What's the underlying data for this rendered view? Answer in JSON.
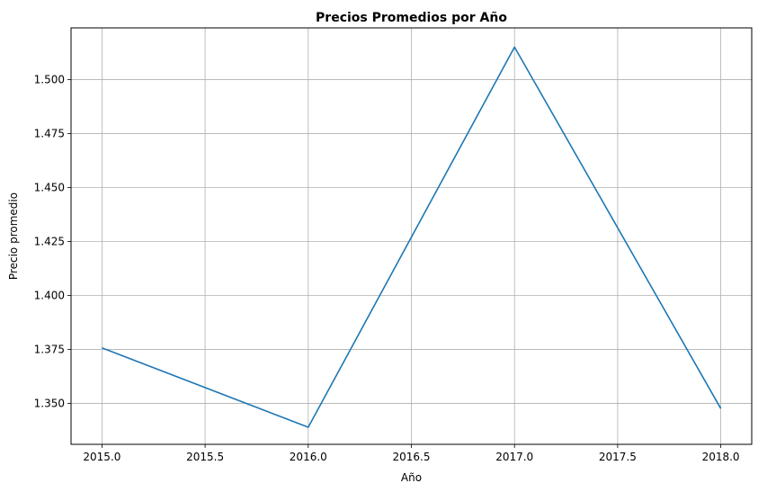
{
  "chart_data": {
    "type": "line",
    "title": "Precios Promedios por Año",
    "xlabel": "Año",
    "ylabel": "Precio promedio",
    "xlim": [
      2014.85,
      2018.15
    ],
    "ylim": [
      1.331,
      1.524
    ],
    "x_ticks": [
      2015.0,
      2015.5,
      2016.0,
      2016.5,
      2017.0,
      2017.5,
      2018.0
    ],
    "x_tick_labels": [
      "2015.0",
      "2015.5",
      "2016.0",
      "2016.5",
      "2017.0",
      "2017.5",
      "2018.0"
    ],
    "y_ticks": [
      1.35,
      1.375,
      1.4,
      1.425,
      1.45,
      1.475,
      1.5
    ],
    "y_tick_labels": [
      "1.350",
      "1.375",
      "1.400",
      "1.425",
      "1.450",
      "1.475",
      "1.500"
    ],
    "grid": true,
    "series": [
      {
        "color": "#1f77b4",
        "x": [
          2015,
          2016,
          2017,
          2018
        ],
        "y": [
          1.3757,
          1.3389,
          1.5151,
          1.3476
        ]
      }
    ]
  }
}
